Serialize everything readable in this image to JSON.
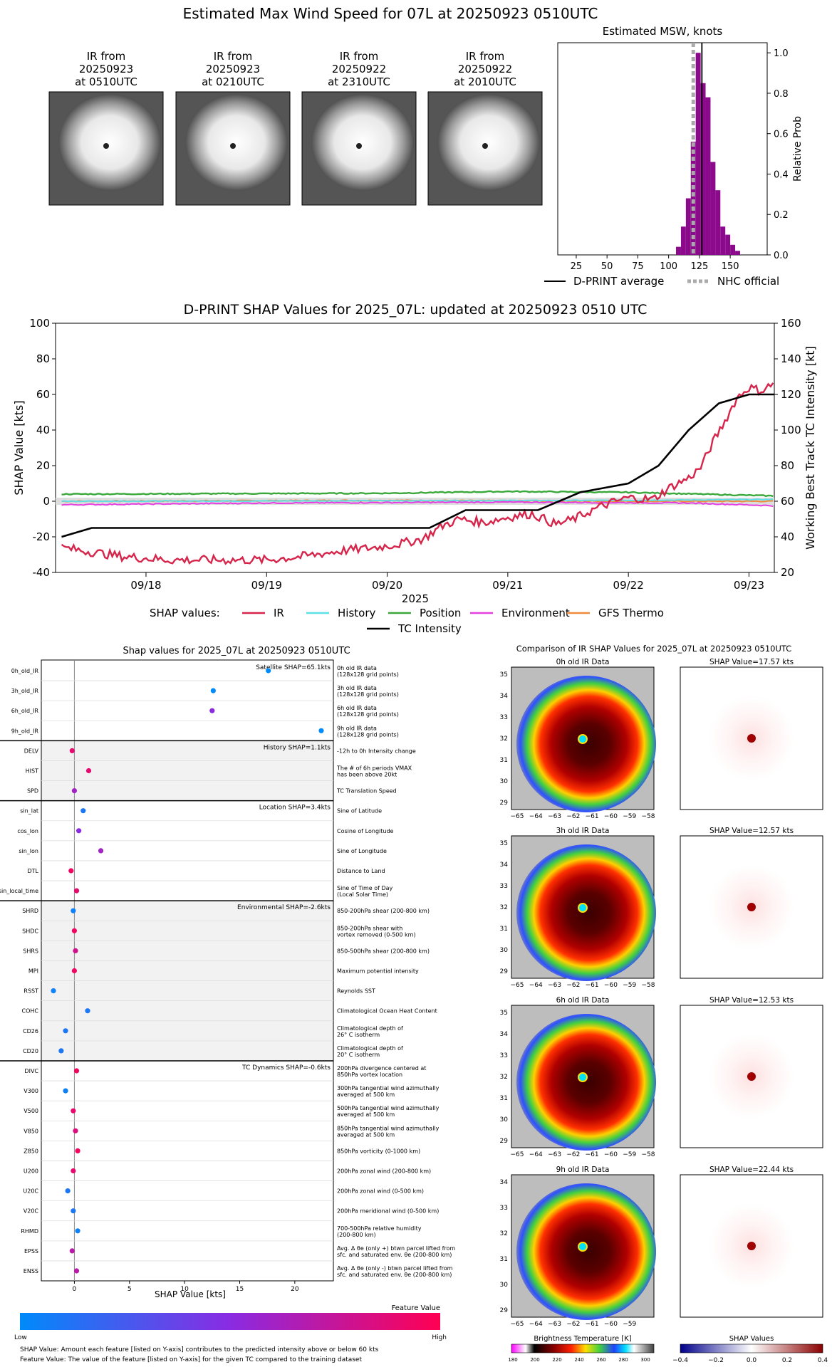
{
  "main_title": "Estimated Max Wind Speed for 07L at 20250923 0510UTC",
  "ir_thumbs": [
    {
      "l1": "IR from",
      "l2": "20250923",
      "l3": "at 0510UTC"
    },
    {
      "l1": "IR from",
      "l2": "20250923",
      "l3": "at 0210UTC"
    },
    {
      "l1": "IR from",
      "l2": "20250922",
      "l3": "at 2310UTC"
    },
    {
      "l1": "IR from",
      "l2": "20250922",
      "l3": "at 2010UTC"
    }
  ],
  "chart_data": [
    {
      "type": "bar",
      "title": "Estimated MSW, knots",
      "ylabel": "Relative Prob",
      "xlim": [
        10,
        180
      ],
      "ylim": [
        0,
        1.05
      ],
      "xticks": [
        25,
        50,
        75,
        100,
        125,
        150
      ],
      "yticks": [
        "0.0",
        "0.2",
        "0.4",
        "0.6",
        "0.8",
        "1.0"
      ],
      "bin_width": 4,
      "bins": [
        [
          106,
          0.04
        ],
        [
          110,
          0.14
        ],
        [
          114,
          0.28
        ],
        [
          118,
          0.56
        ],
        [
          122,
          1.0
        ],
        [
          126,
          0.85
        ],
        [
          130,
          0.78
        ],
        [
          134,
          0.46
        ],
        [
          138,
          0.32
        ],
        [
          142,
          0.14
        ],
        [
          146,
          0.1
        ],
        [
          150,
          0.05
        ],
        [
          154,
          0.02
        ]
      ],
      "dprint_avg": 127,
      "nhc_official": 120,
      "legend": [
        "D-PRINT average",
        "NHC official"
      ],
      "color": "#8b0a8b"
    },
    {
      "type": "line",
      "title": "D-PRINT SHAP Values for 2025_07L: updated at 20250923 0510 UTC",
      "ylabel": "SHAP Value [kts]",
      "ylabel2": "Working Best Track TC Intensity [kt]",
      "xlabel": "2025",
      "ylim": [
        -40,
        100
      ],
      "y2lim": [
        20,
        160
      ],
      "xlim": [
        -0.75,
        5.21
      ],
      "yticks": [
        -40,
        -20,
        0,
        20,
        40,
        60,
        80,
        100
      ],
      "y2ticks": [
        20,
        40,
        60,
        80,
        100,
        120,
        140,
        160
      ],
      "xticks": [
        "09/18",
        "09/19",
        "09/20",
        "09/21",
        "09/22",
        "09/23"
      ],
      "legend_label": "SHAP values:",
      "series": [
        {
          "name": "IR",
          "color": "#d6244a"
        },
        {
          "name": "History",
          "color": "#5fe0e6"
        },
        {
          "name": "Position",
          "color": "#3aa83a"
        },
        {
          "name": "Environment",
          "color": "#e43fe0"
        },
        {
          "name": "GFS Thermo",
          "color": "#f08a3c"
        },
        {
          "name": "TC Intensity",
          "color": "#000000"
        }
      ],
      "ir_anchors": [
        [
          -0.7,
          -26
        ],
        [
          -0.2,
          -31
        ],
        [
          0.2,
          -33
        ],
        [
          0.6,
          -33
        ],
        [
          1.0,
          -33
        ],
        [
          1.3,
          -31
        ],
        [
          1.6,
          -28
        ],
        [
          1.9,
          -26
        ],
        [
          2.1,
          -24
        ],
        [
          2.3,
          -21
        ],
        [
          2.45,
          -14
        ],
        [
          2.6,
          -10
        ],
        [
          2.8,
          -12
        ],
        [
          3.0,
          -9
        ],
        [
          3.2,
          -7
        ],
        [
          3.4,
          -13
        ],
        [
          3.55,
          -10
        ],
        [
          3.7,
          -5
        ],
        [
          3.85,
          -1
        ],
        [
          4.0,
          2
        ],
        [
          4.2,
          1
        ],
        [
          4.35,
          8
        ],
        [
          4.5,
          13
        ],
        [
          4.6,
          19
        ],
        [
          4.7,
          33
        ],
        [
          4.8,
          45
        ],
        [
          4.9,
          58
        ],
        [
          5.0,
          64
        ],
        [
          5.1,
          62
        ],
        [
          5.2,
          66
        ]
      ],
      "tc_intensity": [
        [
          -0.7,
          40
        ],
        [
          -0.45,
          45
        ],
        [
          2.35,
          45
        ],
        [
          2.65,
          55
        ],
        [
          3.25,
          55
        ],
        [
          3.6,
          65
        ],
        [
          4.0,
          70
        ],
        [
          4.25,
          80
        ],
        [
          4.5,
          100
        ],
        [
          4.75,
          115
        ],
        [
          5.0,
          120
        ],
        [
          5.21,
          120
        ]
      ],
      "history_anchors": [
        [
          -0.7,
          0
        ],
        [
          4.0,
          0.5
        ],
        [
          5.2,
          1
        ]
      ],
      "position_anchors": [
        [
          -0.7,
          4
        ],
        [
          2.0,
          4.5
        ],
        [
          3.0,
          5.5
        ],
        [
          4.0,
          5
        ],
        [
          4.6,
          4
        ],
        [
          5.2,
          3
        ]
      ],
      "environment_anchors": [
        [
          -0.7,
          -2
        ],
        [
          1.0,
          -1
        ],
        [
          3.0,
          -0.5
        ],
        [
          4.5,
          -1
        ],
        [
          5.2,
          -2.5
        ]
      ],
      "gfs_anchors": [
        [
          -0.7,
          0
        ],
        [
          2.0,
          0.5
        ],
        [
          4.0,
          0
        ],
        [
          5.2,
          0
        ]
      ]
    },
    {
      "type": "scatter",
      "title": "Shap values for 2025_07L at 20250923 0510UTC",
      "xlabel": "SHAP Value [kts]",
      "xlim": [
        -3,
        23.5
      ],
      "xticks": [
        0,
        5,
        10,
        15,
        20
      ],
      "groups": [
        {
          "title": "Satellite SHAP=65.1kts",
          "shaded": false,
          "rows": [
            {
              "name": "0h_old_IR",
              "value": 17.6,
              "feature": 0.0,
              "desc": [
                "0h old IR data",
                "(128x128 grid points)"
              ]
            },
            {
              "name": "3h_old_IR",
              "value": 12.6,
              "feature": 0.0,
              "desc": [
                "3h old IR data",
                "(128x128 grid points)"
              ]
            },
            {
              "name": "6h_old_IR",
              "value": 12.5,
              "feature": 0.5,
              "desc": [
                "6h old IR data",
                "(128x128 grid points)"
              ]
            },
            {
              "name": "9h_old_IR",
              "value": 22.4,
              "feature": 0.0,
              "desc": [
                "9h old IR data",
                "(128x128 grid points)"
              ]
            }
          ]
        },
        {
          "title": "History SHAP=1.1kts",
          "shaded": true,
          "rows": [
            {
              "name": "DELV",
              "value": -0.2,
              "feature": 0.9,
              "desc": [
                "-12h to 0h Intensity change"
              ]
            },
            {
              "name": "HIST",
              "value": 1.3,
              "feature": 0.9,
              "desc": [
                "The # of 6h periods VMAX",
                "has been above 20kt"
              ]
            },
            {
              "name": "SPD",
              "value": 0.0,
              "feature": 0.6,
              "desc": [
                "TC Translation Speed"
              ]
            }
          ]
        },
        {
          "title": "Location SHAP=3.4kts",
          "shaded": false,
          "rows": [
            {
              "name": "sin_lat",
              "value": 0.8,
              "feature": 0.1,
              "desc": [
                "Sine of Latitude"
              ]
            },
            {
              "name": "cos_lon",
              "value": 0.4,
              "feature": 0.5,
              "desc": [
                "Cosine of Longitude"
              ]
            },
            {
              "name": "sin_lon",
              "value": 2.4,
              "feature": 0.6,
              "desc": [
                "Sine of Longitude"
              ]
            },
            {
              "name": "DTL",
              "value": -0.3,
              "feature": 0.95,
              "desc": [
                "Distance to Land"
              ]
            },
            {
              "name": "sin_local_time",
              "value": 0.2,
              "feature": 0.9,
              "desc": [
                "Sine of Time of Day",
                "(Local Solar Time)"
              ]
            }
          ]
        },
        {
          "title": "Environmental SHAP=-2.6kts",
          "shaded": true,
          "rows": [
            {
              "name": "SHRD",
              "value": -0.1,
              "feature": 0.05,
              "desc": [
                "850-200hPa shear (200-800 km)"
              ]
            },
            {
              "name": "SHDC",
              "value": 0.0,
              "feature": 0.95,
              "desc": [
                "850-200hPa shear with",
                "vortex removed (0-500 km)"
              ]
            },
            {
              "name": "SHRS",
              "value": 0.1,
              "feature": 0.8,
              "desc": [
                "850-500hPa shear (200-800 km)"
              ]
            },
            {
              "name": "MPI",
              "value": 0.0,
              "feature": 0.95,
              "desc": [
                "Maximum potential intensity"
              ]
            },
            {
              "name": "RSST",
              "value": -1.9,
              "feature": 0.05,
              "desc": [
                "Reynolds SST"
              ]
            },
            {
              "name": "COHC",
              "value": 1.2,
              "feature": 0.1,
              "desc": [
                "Climatological Ocean Heat Content"
              ]
            },
            {
              "name": "CD26",
              "value": -0.8,
              "feature": 0.1,
              "desc": [
                "Climatological depth of",
                "26° C isotherm"
              ]
            },
            {
              "name": "CD20",
              "value": -1.2,
              "feature": 0.1,
              "desc": [
                "Climatological depth of",
                "20° C isotherm"
              ]
            }
          ]
        },
        {
          "title": "TC Dynamics SHAP=-0.6kts",
          "shaded": false,
          "rows": [
            {
              "name": "DIVC",
              "value": 0.2,
              "feature": 0.95,
              "desc": [
                "200hPa divergence centered at",
                "850hPa vortex location"
              ]
            },
            {
              "name": "V300",
              "value": -0.8,
              "feature": 0.05,
              "desc": [
                "300hPa tangential wind azimuthally",
                "averaged at 500 km"
              ]
            },
            {
              "name": "V500",
              "value": -0.1,
              "feature": 0.9,
              "desc": [
                "500hPa tangential wind azimuthally",
                "averaged at 500 km"
              ]
            },
            {
              "name": "V850",
              "value": 0.1,
              "feature": 0.85,
              "desc": [
                "850hPa tangential wind azimuthally",
                "averaged at 500 km"
              ]
            },
            {
              "name": "Z850",
              "value": 0.3,
              "feature": 0.95,
              "desc": [
                "850hPa vorticity (0-1000 km)"
              ]
            },
            {
              "name": "U200",
              "value": -0.1,
              "feature": 0.9,
              "desc": [
                "200hPa zonal wind (200-800 km)"
              ]
            },
            {
              "name": "U20C",
              "value": -0.6,
              "feature": 0.1,
              "desc": [
                "200hPa zonal wind (0-500 km)"
              ]
            },
            {
              "name": "V20C",
              "value": -0.1,
              "feature": 0.1,
              "desc": [
                "200hPa meridional wind (0-500 km)"
              ]
            },
            {
              "name": "RHMD",
              "value": 0.3,
              "feature": 0.05,
              "desc": [
                "700-500hPa relative humidity",
                "(200-800 km)"
              ]
            },
            {
              "name": "EPSS",
              "value": -0.2,
              "feature": 0.7,
              "desc": [
                "Avg. Δ θe (only +) btwn parcel lifted from",
                "sfc. and saturated env. θe (200-800 km)"
              ]
            },
            {
              "name": "ENSS",
              "value": 0.2,
              "feature": 0.7,
              "desc": [
                "Avg. Δ θe (only -) btwn parcel lifted from",
                "sfc. and saturated env. θe (200-800 km)"
              ]
            }
          ]
        }
      ],
      "colorbar": {
        "title": "Feature Value",
        "low": "Low",
        "high": "High"
      }
    }
  ],
  "footnotes": [
    "SHAP Value: Amount each feature [listed on Y-axis] contributes to the predicted intensity above or below 60 kts",
    "Feature Value: The value of the feature [listed on Y-axis] for the given TC compared to the training dataset"
  ],
  "comparison": {
    "title": "Comparison of IR SHAP Values for 2025_07L at 20250923 0510UTC",
    "rows": [
      {
        "ir_title": "0h old IR Data",
        "shap_title": "SHAP Value=17.57 kts",
        "yticks": [
          "35",
          "34",
          "33",
          "32",
          "31",
          "30",
          "29"
        ]
      },
      {
        "ir_title": "3h old IR Data",
        "shap_title": "SHAP Value=12.57 kts",
        "yticks": [
          "35",
          "34",
          "33",
          "32",
          "31",
          "30",
          "29"
        ]
      },
      {
        "ir_title": "6h old IR Data",
        "shap_title": "SHAP Value=12.53 kts",
        "yticks": [
          "35",
          "34",
          "33",
          "32",
          "31",
          "30",
          "29"
        ]
      },
      {
        "ir_title": "9h old IR Data",
        "shap_title": "SHAP Value=22.44 kts",
        "yticks": [
          "34",
          "33",
          "32",
          "31",
          "30",
          "29"
        ]
      }
    ],
    "xticks_a": [
      "−65",
      "−64",
      "−63",
      "−62",
      "−61",
      "−60",
      "−59",
      "−58"
    ],
    "xticks_b": [
      "−65",
      "−64",
      "−63",
      "−62",
      "−61",
      "−60",
      "−59"
    ],
    "bt_title": "Brightness Temperature [K]",
    "bt_ticks": [
      "180",
      "200",
      "220",
      "240",
      "260",
      "280",
      "300"
    ],
    "sv_title": "SHAP Values",
    "sv_ticks": [
      "−0.4",
      "−0.2",
      "0.0",
      "0.2",
      "0.4"
    ]
  }
}
